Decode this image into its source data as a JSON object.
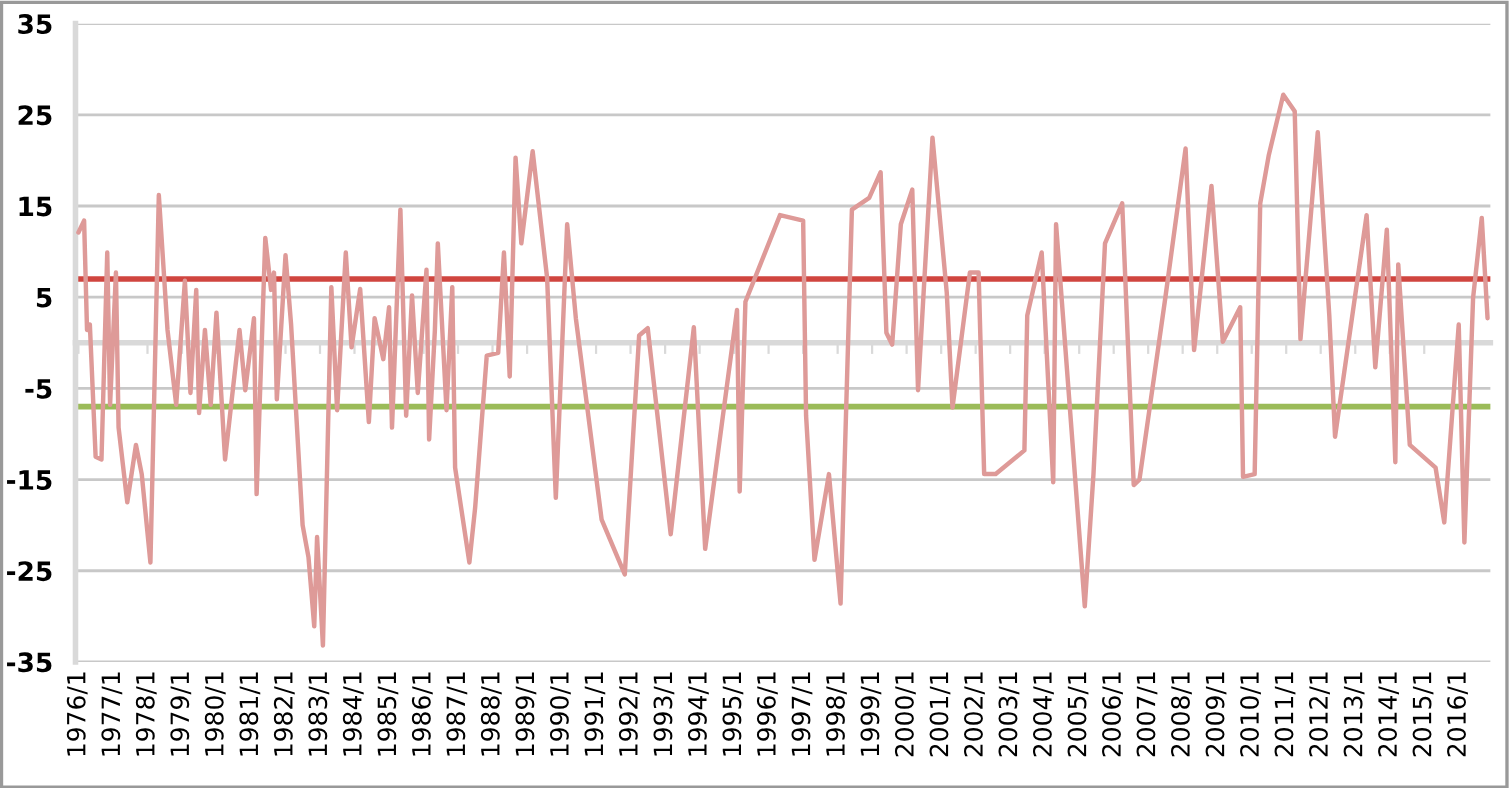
{
  "chart_data": {
    "type": "line",
    "x": [
      "1976-01",
      "1976-03",
      "1976-04",
      "1976-05",
      "1976-07",
      "1976-09",
      "1976-11",
      "1976-12",
      "1977-02",
      "1977-03",
      "1977-06",
      "1977-09",
      "1977-11",
      "1978-02",
      "1978-05",
      "1978-07",
      "1978-08",
      "1978-11",
      "1979-02",
      "1979-04",
      "1979-06",
      "1979-07",
      "1979-09",
      "1979-11",
      "1980-01",
      "1980-04",
      "1980-09",
      "1980-11",
      "1981-02",
      "1981-03",
      "1981-06",
      "1981-08",
      "1981-09",
      "1981-10",
      "1982-01",
      "1982-03",
      "1982-07",
      "1982-09",
      "1982-11",
      "1982-12",
      "1983-02",
      "1983-05",
      "1983-07",
      "1983-10",
      "1983-12",
      "1984-03",
      "1984-06",
      "1984-08",
      "1984-11",
      "1985-01",
      "1985-02",
      "1985-05",
      "1985-07",
      "1985-09",
      "1985-11",
      "1986-02",
      "1986-03",
      "1986-05",
      "1986-06",
      "1986-09",
      "1986-11",
      "1986-12",
      "1987-05",
      "1987-07",
      "1987-11",
      "1988-03",
      "1988-05",
      "1988-07",
      "1988-09",
      "1988-11",
      "1989-03",
      "1989-08",
      "1989-11",
      "1990-03",
      "1990-06",
      "1991-03",
      "1991-11",
      "1992-04",
      "1992-07",
      "1993-03",
      "1993-11",
      "1994-03",
      "1995-02",
      "1995-03",
      "1995-05",
      "1996-05",
      "1997-01",
      "1997-02",
      "1997-05",
      "1997-10",
      "1998-02",
      "1998-06",
      "1998-12",
      "1999-04",
      "1999-06",
      "1999-08",
      "1999-11",
      "2000-03",
      "2000-05",
      "2000-10",
      "2001-03",
      "2001-05",
      "2001-11",
      "2002-02",
      "2002-04",
      "2002-08",
      "2003-06",
      "2003-07",
      "2003-12",
      "2004-04",
      "2004-05",
      "2005-03",
      "2005-06",
      "2005-10",
      "2006-04",
      "2006-08",
      "2006-10",
      "2007-07",
      "2008-02",
      "2008-05",
      "2008-11",
      "2009-03",
      "2009-09",
      "2009-10",
      "2010-02",
      "2010-04",
      "2010-07",
      "2010-12",
      "2011-04",
      "2011-06",
      "2011-12",
      "2012-04",
      "2012-06",
      "2013-05",
      "2013-08",
      "2013-12",
      "2014-03",
      "2014-04",
      "2014-08",
      "2015-05",
      "2015-08",
      "2016-01",
      "2016-03",
      "2016-06",
      "2016-09",
      "2016-11"
    ],
    "series": [
      {
        "color": "#de9a98",
        "values": [
          12.1,
          13.4,
          1.4,
          2,
          -12.5,
          -12.8,
          9.9,
          -6.8,
          7.7,
          -9.3,
          -17.5,
          -11.2,
          -14.4,
          -24.1,
          16.2,
          6.4,
          1.4,
          -6.8,
          6.8,
          -5.5,
          5.8,
          -7.7,
          1.4,
          -6.8,
          3.3,
          -12.8,
          1.4,
          -5.2,
          2.7,
          -16.6,
          11.5,
          5.8,
          7.7,
          -6.2,
          9.6,
          2,
          -20,
          -23.5,
          -31.1,
          -21.3,
          -33.2,
          6.1,
          -7.4,
          9.9,
          -0.5,
          5.9,
          -8.7,
          2.7,
          -1.8,
          3.9,
          -9.3,
          14.6,
          -8,
          5.2,
          -5.5,
          8,
          -10.6,
          1.4,
          10.9,
          -7.4,
          6.1,
          -13.7,
          -24.1,
          -18.1,
          -1.4,
          -1.1,
          9.9,
          -3.7,
          20.3,
          10.9,
          21,
          7.1,
          -17,
          13,
          2.7,
          -19.4,
          -25.4,
          0.8,
          1.6,
          -21,
          1.7,
          -22.6,
          3.6,
          -16.3,
          4.5,
          14,
          13.4,
          -8,
          -23.8,
          -14.4,
          -28.6,
          14.6,
          15.9,
          18.7,
          1.1,
          -0.2,
          13,
          16.8,
          -5.2,
          22.5,
          5.5,
          -7.1,
          7.7,
          7.7,
          -14.4,
          -14.4,
          -11.8,
          3,
          9.9,
          -15.3,
          13,
          -28.9,
          -14.4,
          10.9,
          15.3,
          -15.6,
          -15,
          4.9,
          21.3,
          -0.8,
          17.2,
          0.1,
          3.9,
          -14.7,
          -14.4,
          15.3,
          20.6,
          27.2,
          25.4,
          0.4,
          23.1,
          3,
          -10.3,
          14,
          -2.7,
          12.4,
          -13.1,
          8.6,
          -11.2,
          -13.7,
          -19.7,
          2,
          -21.9,
          4.9,
          13.7,
          2.7
        ]
      }
    ],
    "xlim": [
      "1975-12",
      "2016-12"
    ],
    "xticks": [
      {
        "value": "1976-01",
        "label": "1976/1"
      },
      {
        "value": "1977-01",
        "label": "1977/1"
      },
      {
        "value": "1978-01",
        "label": "1978/1"
      },
      {
        "value": "1979-01",
        "label": "1979/1"
      },
      {
        "value": "1980-01",
        "label": "1980/1"
      },
      {
        "value": "1981-01",
        "label": "1981/1"
      },
      {
        "value": "1982-01",
        "label": "1982/1"
      },
      {
        "value": "1983-01",
        "label": "1983/1"
      },
      {
        "value": "1984-01",
        "label": "1984/1"
      },
      {
        "value": "1985-01",
        "label": "1985/1"
      },
      {
        "value": "1986-01",
        "label": "1986/1"
      },
      {
        "value": "1987-01",
        "label": "1987/1"
      },
      {
        "value": "1988-01",
        "label": "1988/1"
      },
      {
        "value": "1989-01",
        "label": "1989/1"
      },
      {
        "value": "1990-01",
        "label": "1990/1"
      },
      {
        "value": "1991-01",
        "label": "1991/1"
      },
      {
        "value": "1992-01",
        "label": "1992/1"
      },
      {
        "value": "1993-01",
        "label": "1993/1"
      },
      {
        "value": "1994-01",
        "label": "1994/1"
      },
      {
        "value": "1995-01",
        "label": "1995/1"
      },
      {
        "value": "1996-01",
        "label": "1996/1"
      },
      {
        "value": "1997-01",
        "label": "1997/1"
      },
      {
        "value": "1998-01",
        "label": "1998/1"
      },
      {
        "value": "1999-01",
        "label": "1999/1"
      },
      {
        "value": "2000-01",
        "label": "2000/1"
      },
      {
        "value": "2001-01",
        "label": "2001/1"
      },
      {
        "value": "2002-01",
        "label": "2002/1"
      },
      {
        "value": "2003-01",
        "label": "2003/1"
      },
      {
        "value": "2004-01",
        "label": "2004/1"
      },
      {
        "value": "2005-01",
        "label": "2005/1"
      },
      {
        "value": "2006-01",
        "label": "2006/1"
      },
      {
        "value": "2007-01",
        "label": "2007/1"
      },
      {
        "value": "2008-01",
        "label": "2008/1"
      },
      {
        "value": "2009-01",
        "label": "2009/1"
      },
      {
        "value": "2010-01",
        "label": "2010/1"
      },
      {
        "value": "2011-01",
        "label": "2011/1"
      },
      {
        "value": "2012-01",
        "label": "2012/1"
      },
      {
        "value": "2013-01",
        "label": "2013/1"
      },
      {
        "value": "2014-01",
        "label": "2014/1"
      },
      {
        "value": "2015-01",
        "label": "2015/1"
      },
      {
        "value": "2016-01",
        "label": "2016/1"
      }
    ],
    "ylim": [
      -35,
      35
    ],
    "yticks": [
      -35,
      -25,
      -15,
      -5,
      5,
      15,
      25,
      35
    ],
    "ref_lines": [
      {
        "axis": "y",
        "value": 7,
        "color": "#d0453f"
      },
      {
        "axis": "y",
        "value": -7,
        "color": "#9bbb59"
      }
    ],
    "grid": "y",
    "marker": "none",
    "line_style": "solid"
  }
}
